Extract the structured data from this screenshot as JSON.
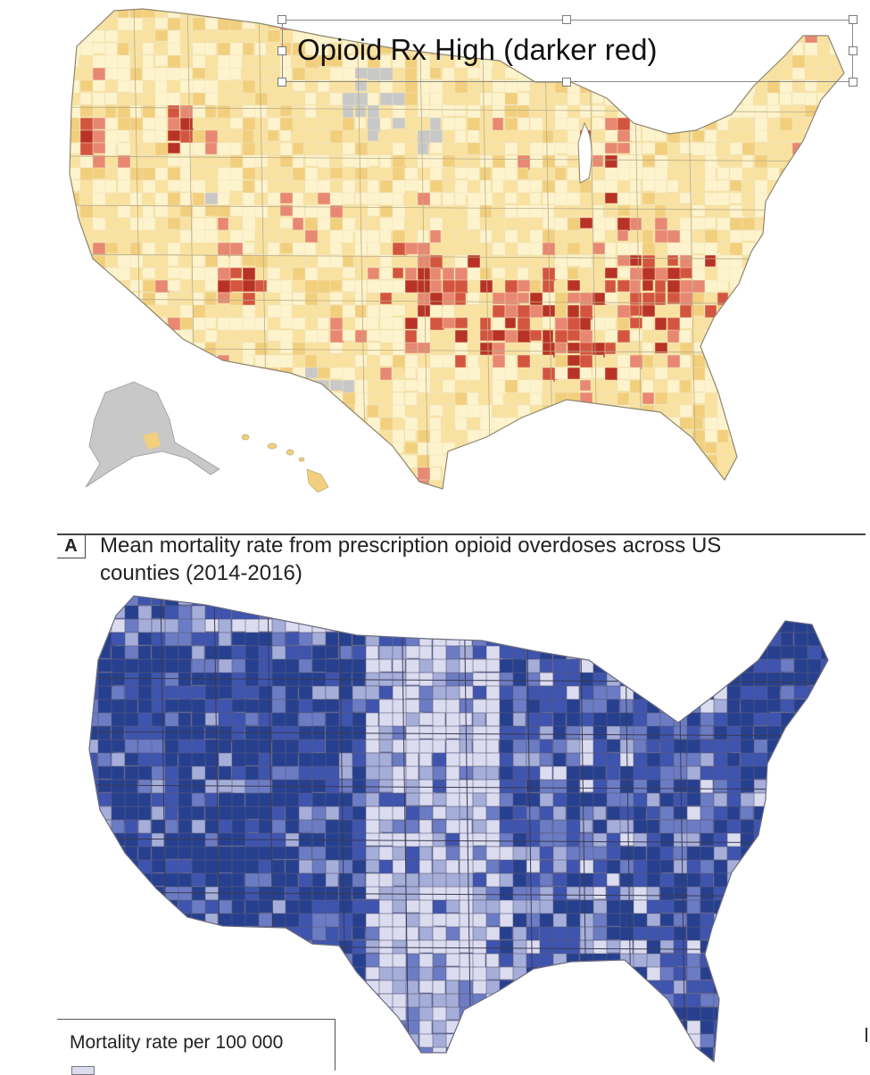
{
  "top_panel": {
    "annotation_label": "Opioid Rx High (darker red)",
    "palette": [
      "#fdf3cc",
      "#f9e2a0",
      "#f2cf7d",
      "#e88872",
      "#d4553f",
      "#b93226"
    ],
    "no_data_color": "#c8c8c8",
    "map_shapes": [
      "continental-us-outline",
      "alaska-outline",
      "hawaii-islands"
    ]
  },
  "bottom_panel": {
    "panel_letter": "A",
    "title": "Mean mortality rate from prescription opioid overdoses across US counties (2014-2016)",
    "legend": {
      "title": "Mortality rate per 100 000",
      "first_swatch_color": "#dcdcf0"
    },
    "palette": [
      "#dcdcf0",
      "#a5aed8",
      "#6c7cc4",
      "#3e54ae",
      "#26408f"
    ],
    "map_shapes": [
      "continental-us-outline"
    ]
  }
}
